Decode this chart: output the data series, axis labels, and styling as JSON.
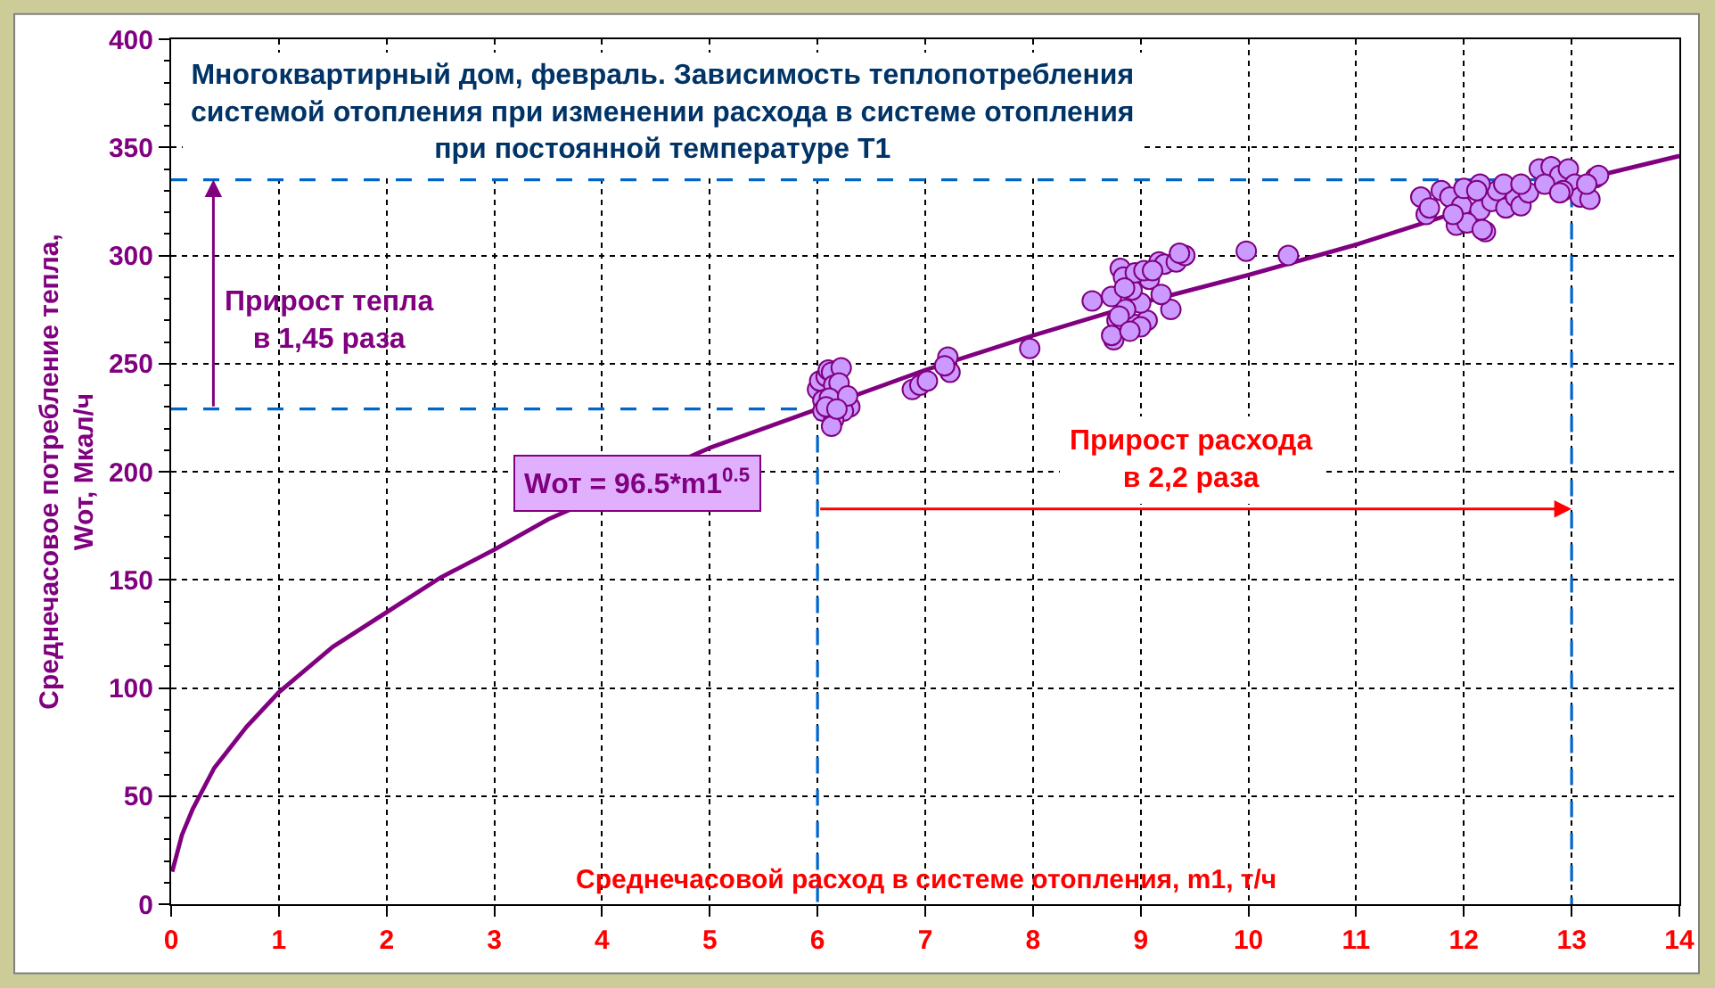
{
  "chart_data": {
    "type": "scatter",
    "title": "Многоквартирный дом, февраль. Зависимость теплопотребления\nсистемой отопления при изменении расхода в системе отопления\nпри постоянной температуре Т1",
    "xlabel": "Среднечасовой расход в системе отопления, m1, т/ч",
    "ylabel": "Среднечасовое потребление тепла,\nWот, Мкал/ч",
    "xlim": [
      0,
      14
    ],
    "xticks": [
      0,
      1,
      2,
      3,
      4,
      5,
      6,
      7,
      8,
      9,
      10,
      11,
      12,
      13,
      14
    ],
    "ylim": [
      0,
      400
    ],
    "yticks": [
      0,
      {
        "value": 10,
        "label": null
      },
      {
        "value": 20,
        "label": null
      },
      {
        "value": 30,
        "label": null
      },
      {
        "value": 40,
        "label": null
      },
      50,
      {
        "value": 60,
        "label": null
      },
      {
        "value": 70,
        "label": null
      },
      {
        "value": 80,
        "label": null
      },
      {
        "value": 90,
        "label": null
      },
      100,
      {
        "value": 110,
        "label": null
      },
      {
        "value": 120,
        "label": null
      },
      {
        "value": 130,
        "label": null
      },
      {
        "value": 140,
        "label": null
      },
      150,
      {
        "value": 160,
        "label": null
      },
      {
        "value": 170,
        "label": null
      },
      {
        "value": 180,
        "label": null
      },
      {
        "value": 190,
        "label": null
      },
      200,
      {
        "value": 210,
        "label": null
      },
      {
        "value": 220,
        "label": null
      },
      {
        "value": 230,
        "label": null
      },
      {
        "value": 240,
        "label": null
      },
      250,
      {
        "value": 260,
        "label": null
      },
      {
        "value": 270,
        "label": null
      },
      {
        "value": 280,
        "label": null
      },
      {
        "value": 290,
        "label": null
      },
      300,
      {
        "value": 310,
        "label": null
      },
      {
        "value": 320,
        "label": null
      },
      {
        "value": 330,
        "label": null
      },
      {
        "value": 340,
        "label": null
      },
      350,
      {
        "value": 360,
        "label": null
      },
      {
        "value": 370,
        "label": null
      },
      {
        "value": 380,
        "label": null
      },
      {
        "value": 390,
        "label": null
      },
      400
    ],
    "grid": true,
    "series": [
      {
        "color": "#cc99ff",
        "marker": "circle",
        "x": [
          6.0,
          6.02,
          6.05,
          6.08,
          6.1,
          6.13,
          6.15,
          6.22,
          6.2,
          6.11,
          6.3,
          6.24,
          6.05,
          6.15,
          6.13,
          6.28,
          6.08,
          6.18,
          6.88,
          6.95,
          7.02,
          7.21,
          7.23,
          7.18,
          7.97,
          8.55,
          8.73,
          8.81,
          8.78,
          8.75,
          8.95,
          9.06,
          9.0,
          8.86,
          8.92,
          9.08,
          9.17,
          9.28,
          9.22,
          9.33,
          9.41,
          9.19,
          8.84,
          8.95,
          9.03,
          9.11,
          9.36,
          8.73,
          9.0,
          8.8,
          8.9,
          8.85,
          9.98,
          10.37,
          11.6,
          11.65,
          11.68,
          11.79,
          11.87,
          11.93,
          11.98,
          12.15,
          12.2,
          12.26,
          12.31,
          12.39,
          12.48,
          12.53,
          12.15,
          12.03,
          11.9,
          12.6,
          12.0,
          12.37,
          12.53,
          12.17,
          12.12,
          12.7,
          12.81,
          12.89,
          12.97,
          13.03,
          13.08,
          13.17,
          13.22,
          13.25,
          12.75,
          12.92,
          13.14,
          12.89
        ],
        "values": [
          238,
          242,
          233,
          244,
          247,
          246,
          240,
          248,
          241,
          234,
          230,
          228,
          228,
          224,
          221,
          235,
          230,
          229,
          238,
          240,
          242,
          253,
          246,
          249,
          257,
          279,
          281,
          294,
          270,
          261,
          268,
          270,
          278,
          275,
          284,
          289,
          297,
          275,
          296,
          297,
          300,
          282,
          290,
          292,
          293,
          293,
          301,
          263,
          267,
          272,
          265,
          285,
          302,
          300,
          327,
          319,
          322,
          330,
          327,
          314,
          323,
          321,
          311,
          325,
          330,
          322,
          327,
          323,
          333,
          315,
          319,
          329,
          331,
          333,
          333,
          312,
          330,
          340,
          341,
          337,
          340,
          333,
          327,
          326,
          336,
          337,
          333,
          330,
          333,
          329
        ]
      },
      {
        "type": "line",
        "color": "#800080",
        "x": [
          0.01,
          0.1,
          0.2,
          0.4,
          0.7,
          1,
          1.5,
          2,
          2.5,
          3,
          3.5,
          5,
          6,
          7,
          8,
          9,
          10,
          11,
          12,
          13,
          14
        ],
        "values": [
          15,
          32,
          44,
          63,
          82,
          98,
          119,
          135,
          151,
          164,
          178,
          211,
          229,
          247,
          263,
          278,
          291,
          305,
          321,
          334,
          346
        ]
      },
      {
        "type": "line",
        "color": "#0066cc",
        "line_style": "dashed",
        "x": [
          0,
          6,
          6
        ],
        "values": [
          229,
          229,
          0
        ]
      },
      {
        "type": "line",
        "color": "#0066cc",
        "line_style": "dashed",
        "x": [
          0,
          13,
          13
        ],
        "values": [
          335,
          335,
          0
        ]
      }
    ],
    "annotations": [
      "Прирост тепла\nв 1,45 раза",
      "Прирост расхода\nв 2,2 раза",
      "Wот = 96.5*m1$^{0.5}$"
    ]
  }
}
